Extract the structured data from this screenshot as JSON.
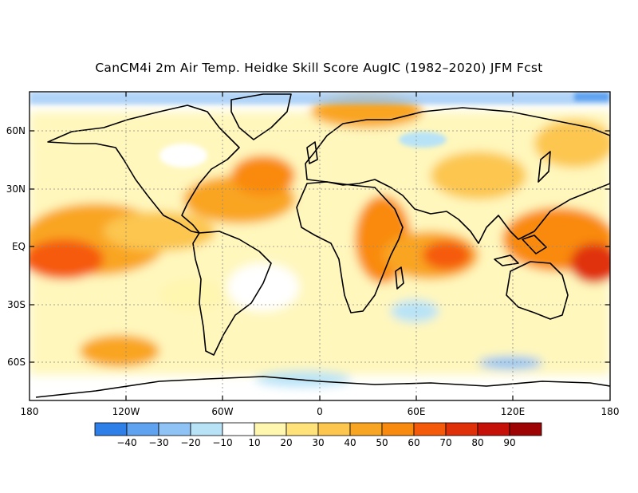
{
  "title": "CanCM4i 2m Air Temp. Heidke Skill Score AugIC (1982–2020) JFM Fcst",
  "map": {
    "lat_labels": [
      "60N",
      "30N",
      "EQ",
      "30S",
      "60S"
    ],
    "lon_labels": [
      "180",
      "120W",
      "60W",
      "0",
      "60E",
      "120E",
      "180"
    ],
    "gridlines": "dotted",
    "lat_range": [
      -80,
      80
    ],
    "lon_range": [
      -180,
      180
    ]
  },
  "colorbar": {
    "labels": [
      "−40",
      "−30",
      "−20",
      "−10",
      "10",
      "20",
      "30",
      "40",
      "50",
      "60",
      "70",
      "80",
      "90"
    ],
    "colors": [
      "#2f7fe9",
      "#5ea2f0",
      "#8fc2f5",
      "#b8e3f7",
      "#ffffff",
      "#fff6b0",
      "#ffe27a",
      "#fcc64f",
      "#f9a524",
      "#f98a10",
      "#f55a0a",
      "#e0300a",
      "#c61108",
      "#9e0404"
    ]
  }
}
